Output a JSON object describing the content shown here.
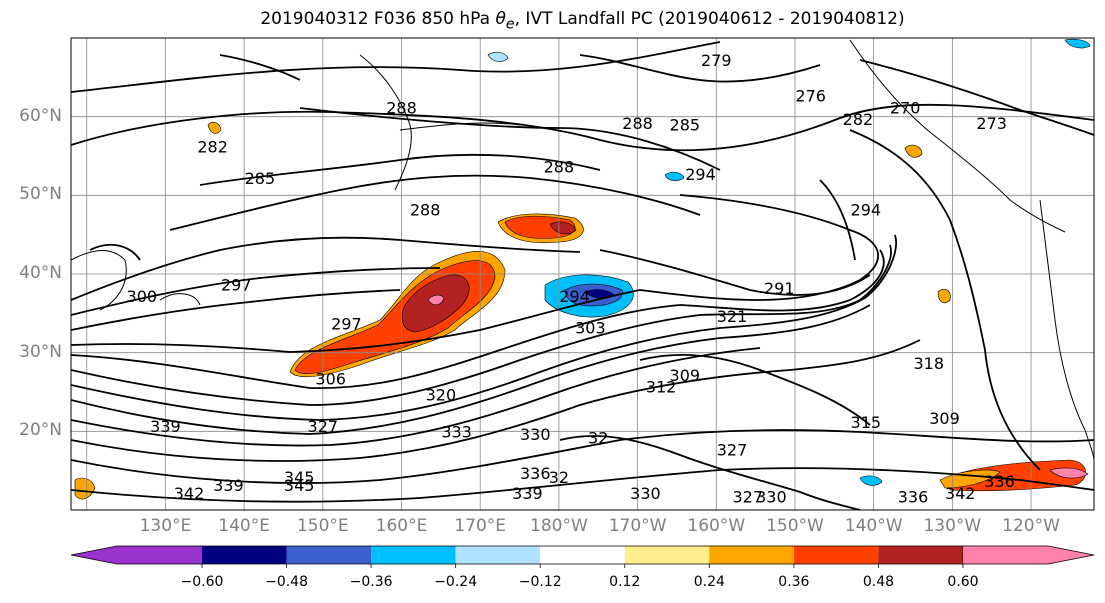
{
  "title": {
    "prefix": "2019040312 F036 850 hPa ",
    "theta": "θ",
    "subscript": "e",
    "suffix": ", IVT Landfall PC (2019040612 - 2019040812)"
  },
  "axes": {
    "lat_labels": [
      "60°N",
      "50°N",
      "40°N",
      "30°N",
      "20°N"
    ],
    "lon_labels": [
      "130°E",
      "140°E",
      "150°E",
      "160°E",
      "170°E",
      "180°W",
      "170°W",
      "160°W",
      "150°W",
      "140°W",
      "130°W",
      "120°W"
    ]
  },
  "contour_labels": [
    {
      "text": "279",
      "lon": 200,
      "lat": 67
    },
    {
      "text": "276",
      "lon": 212,
      "lat": 62.5
    },
    {
      "text": "270",
      "lon": 224,
      "lat": 61
    },
    {
      "text": "273",
      "lon": 235,
      "lat": 59
    },
    {
      "text": "288",
      "lon": 160,
      "lat": 61
    },
    {
      "text": "288",
      "lon": 190,
      "lat": 59
    },
    {
      "text": "285",
      "lon": 196,
      "lat": 58.8
    },
    {
      "text": "282",
      "lon": 218,
      "lat": 59.5
    },
    {
      "text": "282",
      "lon": 136,
      "lat": 56
    },
    {
      "text": "285",
      "lon": 142,
      "lat": 52
    },
    {
      "text": "288",
      "lon": 180,
      "lat": 53.5
    },
    {
      "text": "294",
      "lon": 198,
      "lat": 52.5
    },
    {
      "text": "288",
      "lon": 163,
      "lat": 48
    },
    {
      "text": "294",
      "lon": 219,
      "lat": 48
    },
    {
      "text": "297",
      "lon": 139,
      "lat": 38.5
    },
    {
      "text": "300",
      "lon": 127,
      "lat": 37
    },
    {
      "text": "297",
      "lon": 153,
      "lat": 33.5
    },
    {
      "text": "294",
      "lon": 182,
      "lat": 37
    },
    {
      "text": "303",
      "lon": 184,
      "lat": 33
    },
    {
      "text": "321",
      "lon": 202,
      "lat": 34.5
    },
    {
      "text": "291",
      "lon": 208,
      "lat": 38
    },
    {
      "text": "306",
      "lon": 151,
      "lat": 26.5
    },
    {
      "text": "312",
      "lon": 193,
      "lat": 25.5
    },
    {
      "text": "309",
      "lon": 196,
      "lat": 27
    },
    {
      "text": "318",
      "lon": 227,
      "lat": 28.5
    },
    {
      "text": "315",
      "lon": 219,
      "lat": 21
    },
    {
      "text": "309",
      "lon": 229,
      "lat": 21.5
    },
    {
      "text": "327",
      "lon": 150,
      "lat": 20.5
    },
    {
      "text": "320",
      "lon": 165,
      "lat": 24.5
    },
    {
      "text": "333",
      "lon": 167,
      "lat": 19.8
    },
    {
      "text": "330",
      "lon": 177,
      "lat": 19.5
    },
    {
      "text": "32",
      "lon": 185,
      "lat": 19
    },
    {
      "text": "327",
      "lon": 202,
      "lat": 17.5
    },
    {
      "text": "339",
      "lon": 130,
      "lat": 20.5
    },
    {
      "text": "342",
      "lon": 133,
      "lat": 12
    },
    {
      "text": "339",
      "lon": 138,
      "lat": 13
    },
    {
      "text": "345",
      "lon": 147,
      "lat": 14
    },
    {
      "text": "345",
      "lon": 147,
      "lat": 13
    },
    {
      "text": "336",
      "lon": 177,
      "lat": 14.5
    },
    {
      "text": "32",
      "lon": 180,
      "lat": 14
    },
    {
      "text": "339",
      "lon": 176,
      "lat": 12
    },
    {
      "text": "330",
      "lon": 191,
      "lat": 12
    },
    {
      "text": "327",
      "lon": 204,
      "lat": 11.5
    },
    {
      "text": "330",
      "lon": 207,
      "lat": 11.5
    },
    {
      "text": "336",
      "lon": 225,
      "lat": 11.5
    },
    {
      "text": "342",
      "lon": 231,
      "lat": 12
    },
    {
      "text": "336",
      "lon": 236,
      "lat": 13.5
    }
  ],
  "colorbar": {
    "ticks": [
      "−0.60",
      "−0.48",
      "−0.36",
      "−0.24",
      "−0.12",
      "0.12",
      "0.24",
      "0.36",
      "0.48",
      "0.60"
    ],
    "colors": [
      "#9a32cd",
      "#000080",
      "#3a5fcd",
      "#00bfff",
      "#b0e2ff",
      "#ffffff",
      "#ffec8b",
      "#ffa500",
      "#ff4000",
      "#b22222",
      "#ff82ab"
    ]
  },
  "colors": {
    "gridline": "#888888",
    "contour": "#000000",
    "coastline": "#000000"
  }
}
